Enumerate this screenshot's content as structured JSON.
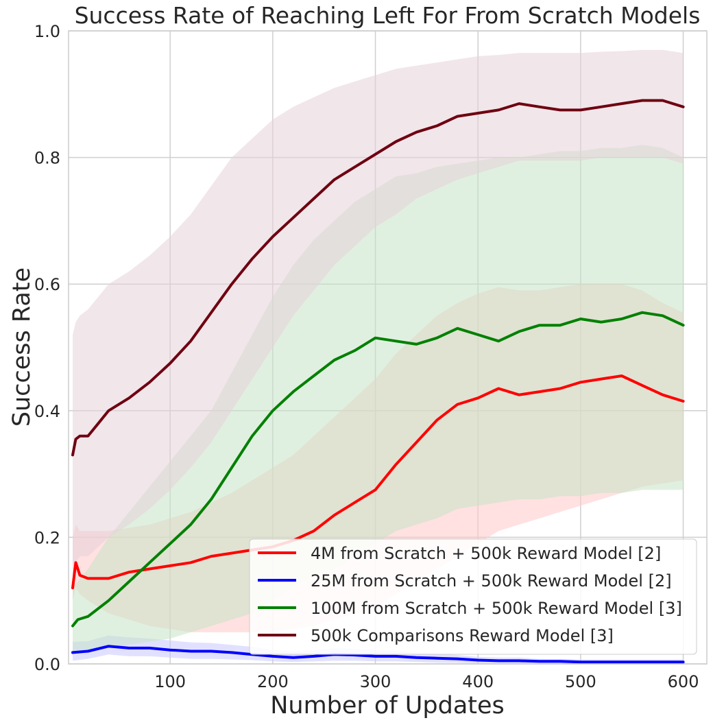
{
  "chart_data": {
    "type": "line",
    "title": "Success Rate of Reaching Left For From Scratch Models",
    "xlabel": "Number of Updates",
    "ylabel": "Success Rate",
    "xlim": [
      1,
      623
    ],
    "ylim": [
      0.0,
      1.0
    ],
    "xticks": [
      100,
      200,
      300,
      400,
      500,
      600
    ],
    "yticks": [
      0.0,
      0.2,
      0.4,
      0.6,
      0.8,
      1.0
    ],
    "xtick_labels": [
      "100",
      "200",
      "300",
      "400",
      "500",
      "600"
    ],
    "ytick_labels": [
      "0.0",
      "0.2",
      "0.4",
      "0.6",
      "0.8",
      "1.0"
    ],
    "grid": true,
    "legend_position": "lower-right",
    "series": [
      {
        "name": "4M from Scratch + 500k Reward Model [2]",
        "color": "#ff0000",
        "band_color": "#ffc8c8",
        "x": [
          5,
          8,
          12,
          20,
          40,
          60,
          80,
          100,
          120,
          140,
          160,
          180,
          200,
          220,
          240,
          260,
          280,
          300,
          320,
          340,
          360,
          380,
          400,
          420,
          440,
          460,
          480,
          500,
          520,
          540,
          560,
          580,
          600
        ],
        "y": [
          0.12,
          0.16,
          0.14,
          0.135,
          0.135,
          0.145,
          0.15,
          0.155,
          0.16,
          0.17,
          0.175,
          0.18,
          0.185,
          0.195,
          0.21,
          0.235,
          0.255,
          0.275,
          0.315,
          0.35,
          0.385,
          0.41,
          0.42,
          0.435,
          0.425,
          0.43,
          0.435,
          0.445,
          0.45,
          0.455,
          0.44,
          0.425,
          0.415
        ],
        "lower": [
          0.1,
          0.12,
          0.11,
          0.1,
          0.08,
          0.07,
          0.06,
          0.055,
          0.05,
          0.05,
          0.05,
          0.05,
          0.05,
          0.055,
          0.06,
          0.07,
          0.08,
          0.09,
          0.11,
          0.13,
          0.15,
          0.17,
          0.19,
          0.21,
          0.22,
          0.23,
          0.24,
          0.25,
          0.26,
          0.27,
          0.28,
          0.285,
          0.29
        ],
        "upper": [
          0.2,
          0.22,
          0.21,
          0.21,
          0.21,
          0.215,
          0.22,
          0.23,
          0.24,
          0.255,
          0.27,
          0.29,
          0.31,
          0.33,
          0.36,
          0.39,
          0.42,
          0.45,
          0.49,
          0.52,
          0.55,
          0.57,
          0.585,
          0.595,
          0.59,
          0.59,
          0.595,
          0.6,
          0.6,
          0.6,
          0.59,
          0.57,
          0.555
        ]
      },
      {
        "name": "25M from Scratch + 500k Reward Model  [2]",
        "color": "#0000ff",
        "band_color": "#c8c8ff",
        "x": [
          5,
          20,
          40,
          60,
          80,
          100,
          120,
          140,
          160,
          180,
          200,
          220,
          240,
          260,
          280,
          300,
          320,
          340,
          360,
          380,
          400,
          420,
          440,
          460,
          480,
          500,
          520,
          540,
          560,
          580,
          600
        ],
        "y": [
          0.018,
          0.02,
          0.028,
          0.025,
          0.025,
          0.022,
          0.02,
          0.02,
          0.018,
          0.015,
          0.012,
          0.01,
          0.012,
          0.015,
          0.014,
          0.012,
          0.012,
          0.01,
          0.009,
          0.008,
          0.006,
          0.005,
          0.005,
          0.004,
          0.004,
          0.003,
          0.003,
          0.003,
          0.003,
          0.003,
          0.003
        ],
        "lower": [
          0.005,
          0.008,
          0.015,
          0.012,
          0.012,
          0.01,
          0.008,
          0.008,
          0.007,
          0.006,
          0.004,
          0.003,
          0.004,
          0.005,
          0.005,
          0.004,
          0.004,
          0.003,
          0.002,
          0.002,
          0.001,
          0.001,
          0.001,
          0.001,
          0.001,
          0.0,
          0.0,
          0.0,
          0.0,
          0.0,
          0.0
        ],
        "upper": [
          0.035,
          0.036,
          0.045,
          0.042,
          0.04,
          0.037,
          0.034,
          0.033,
          0.03,
          0.027,
          0.022,
          0.02,
          0.022,
          0.025,
          0.024,
          0.022,
          0.021,
          0.018,
          0.016,
          0.014,
          0.011,
          0.01,
          0.01,
          0.008,
          0.008,
          0.007,
          0.007,
          0.007,
          0.007,
          0.007,
          0.007
        ]
      },
      {
        "name": "100M from Scratch + 500k Reward Model [3]",
        "color": "#008000",
        "band_color": "#c6e4c6",
        "x": [
          5,
          10,
          20,
          40,
          60,
          80,
          100,
          120,
          140,
          160,
          180,
          200,
          220,
          240,
          260,
          280,
          300,
          320,
          340,
          360,
          380,
          400,
          420,
          440,
          460,
          480,
          500,
          520,
          540,
          560,
          580,
          600
        ],
        "y": [
          0.06,
          0.07,
          0.075,
          0.1,
          0.13,
          0.16,
          0.19,
          0.22,
          0.26,
          0.31,
          0.36,
          0.4,
          0.43,
          0.455,
          0.48,
          0.495,
          0.515,
          0.51,
          0.505,
          0.515,
          0.53,
          0.52,
          0.51,
          0.525,
          0.535,
          0.535,
          0.545,
          0.54,
          0.545,
          0.555,
          0.55,
          0.535
        ],
        "lower": [
          0.02,
          0.02,
          0.02,
          0.025,
          0.03,
          0.035,
          0.04,
          0.05,
          0.06,
          0.07,
          0.08,
          0.1,
          0.12,
          0.14,
          0.15,
          0.17,
          0.19,
          0.21,
          0.22,
          0.23,
          0.245,
          0.25,
          0.255,
          0.26,
          0.26,
          0.265,
          0.265,
          0.27,
          0.27,
          0.275,
          0.275,
          0.275
        ],
        "upper": [
          0.12,
          0.13,
          0.15,
          0.2,
          0.24,
          0.28,
          0.32,
          0.36,
          0.4,
          0.46,
          0.52,
          0.58,
          0.63,
          0.67,
          0.7,
          0.73,
          0.75,
          0.77,
          0.775,
          0.785,
          0.79,
          0.795,
          0.8,
          0.8,
          0.805,
          0.81,
          0.81,
          0.815,
          0.815,
          0.82,
          0.815,
          0.8
        ]
      },
      {
        "name": "500k Comparisons Reward Model [3]",
        "color": "#6e0011",
        "band_color": "#e6d2d8",
        "x": [
          5,
          8,
          12,
          20,
          30,
          40,
          60,
          80,
          100,
          120,
          140,
          160,
          180,
          200,
          220,
          240,
          260,
          280,
          300,
          320,
          340,
          360,
          380,
          400,
          420,
          440,
          460,
          480,
          500,
          520,
          540,
          560,
          580,
          600
        ],
        "y": [
          0.33,
          0.355,
          0.36,
          0.36,
          0.38,
          0.4,
          0.42,
          0.445,
          0.475,
          0.51,
          0.555,
          0.6,
          0.64,
          0.675,
          0.705,
          0.735,
          0.765,
          0.785,
          0.805,
          0.825,
          0.84,
          0.85,
          0.865,
          0.87,
          0.875,
          0.885,
          0.88,
          0.875,
          0.875,
          0.88,
          0.885,
          0.89,
          0.89,
          0.88
        ],
        "lower": [
          0.14,
          0.16,
          0.17,
          0.17,
          0.185,
          0.2,
          0.22,
          0.245,
          0.275,
          0.31,
          0.35,
          0.4,
          0.45,
          0.5,
          0.55,
          0.59,
          0.63,
          0.66,
          0.69,
          0.71,
          0.735,
          0.75,
          0.765,
          0.775,
          0.785,
          0.795,
          0.795,
          0.795,
          0.795,
          0.8,
          0.8,
          0.8,
          0.8,
          0.79
        ],
        "upper": [
          0.52,
          0.54,
          0.55,
          0.56,
          0.58,
          0.6,
          0.62,
          0.645,
          0.675,
          0.71,
          0.755,
          0.8,
          0.83,
          0.86,
          0.88,
          0.895,
          0.91,
          0.92,
          0.93,
          0.94,
          0.945,
          0.95,
          0.955,
          0.96,
          0.962,
          0.965,
          0.965,
          0.965,
          0.965,
          0.967,
          0.968,
          0.97,
          0.97,
          0.965
        ]
      }
    ]
  }
}
